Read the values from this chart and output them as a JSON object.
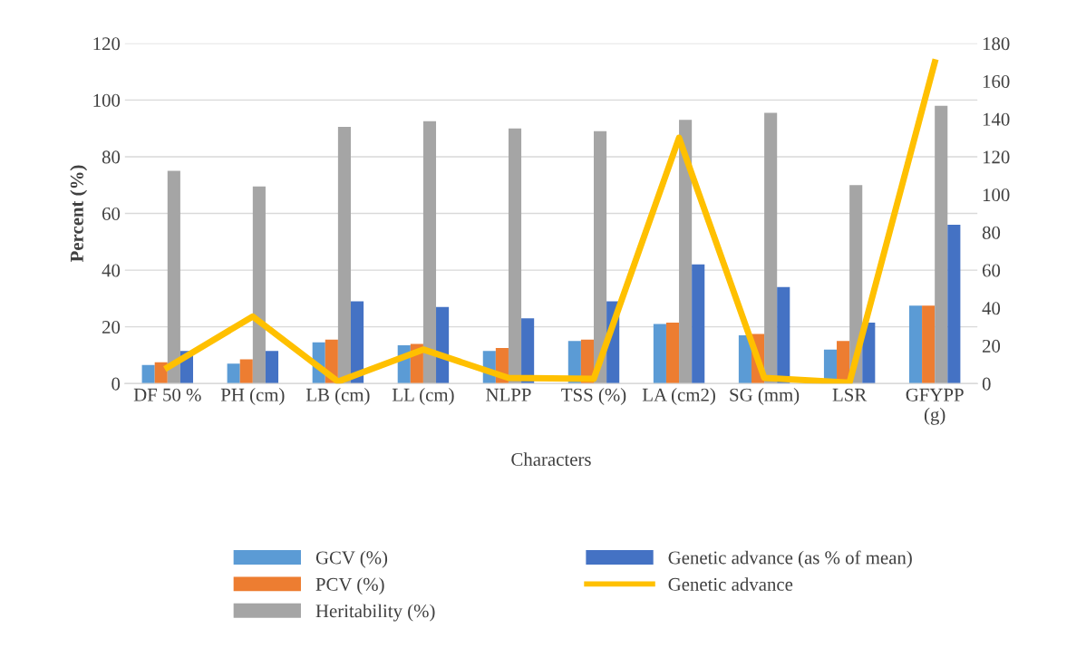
{
  "chart_data": {
    "type": "bar",
    "categories": [
      "DF 50 %",
      "PH (cm)",
      "LB (cm)",
      "LL (cm)",
      "NLPP",
      "TSS (%)",
      "LA (cm2)",
      "SG (mm)",
      "LSR",
      "GFYPP\n(g)"
    ],
    "series": [
      {
        "name": "GCV (%)",
        "color": "#5b9bd5",
        "values": [
          6.5,
          7,
          14.5,
          13.5,
          11.5,
          15,
          21,
          17,
          12,
          27.5
        ]
      },
      {
        "name": "PCV (%)",
        "color": "#ed7d31",
        "values": [
          7.5,
          8.5,
          15.5,
          14,
          12.5,
          15.5,
          21.5,
          17.5,
          15,
          27.5
        ]
      },
      {
        "name": "Heritability (%)",
        "color": "#a5a5a5",
        "values": [
          75,
          69.5,
          90.5,
          92.5,
          90,
          89,
          93,
          95.5,
          70,
          98
        ]
      },
      {
        "name": "Genetic advance (as % of mean)",
        "color": "#4472c4",
        "values": [
          11.5,
          11.5,
          29,
          27,
          23,
          29,
          42,
          34,
          21.5,
          56
        ]
      },
      {
        "name": "Genetic advance",
        "type": "line",
        "axis": "y2",
        "color": "#ffc000",
        "values": [
          8.5,
          35.5,
          1,
          18,
          3,
          2.5,
          130,
          3,
          0.5,
          170
        ]
      }
    ],
    "xlabel": "Characters",
    "ylabel": "Percent (%)",
    "ylim": [
      0,
      120
    ],
    "yticks": [
      0,
      20,
      40,
      60,
      80,
      100,
      120
    ],
    "y2lim": [
      0,
      180
    ],
    "y2ticks": [
      0,
      20,
      40,
      60,
      80,
      100,
      120,
      140,
      160,
      180
    ],
    "grid": "y",
    "legend": "bottom",
    "marker": "none",
    "line_style": "solid"
  }
}
